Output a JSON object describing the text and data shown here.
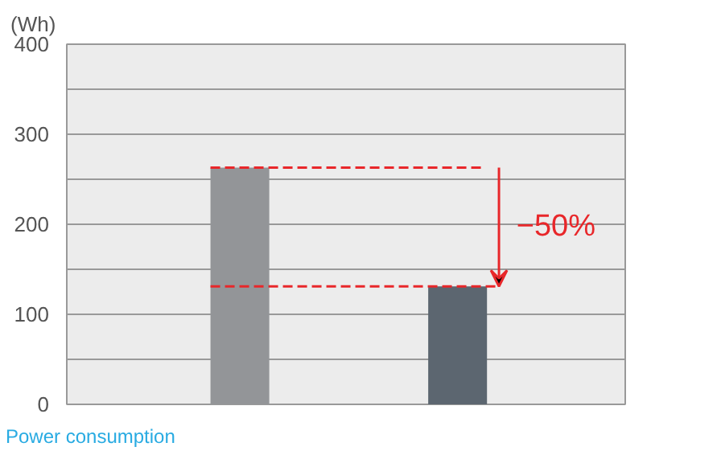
{
  "chart_data": {
    "type": "bar",
    "ylabel": "(Wh)",
    "categories": [
      null,
      null
    ],
    "values": [
      263,
      131
    ],
    "colors": [
      "#939598",
      "#5c6670"
    ],
    "ylim": [
      0,
      400
    ],
    "yticks": [
      0,
      {
        "value": 50,
        "label": null
      },
      100,
      {
        "value": 150,
        "label": null
      },
      200,
      {
        "value": 250,
        "label": null
      },
      300,
      {
        "value": 350,
        "label": null
      },
      400
    ],
    "grid": "y",
    "ref_lines": [
      {
        "axis": "y",
        "value": 263,
        "label": null,
        "color": "#e8272a",
        "line_style": "dashed"
      },
      {
        "axis": "y",
        "value": 131,
        "label": null,
        "color": "#e8272a",
        "line_style": "dashed"
      }
    ],
    "annotations": [
      "−50%",
      "Power consumption"
    ]
  }
}
